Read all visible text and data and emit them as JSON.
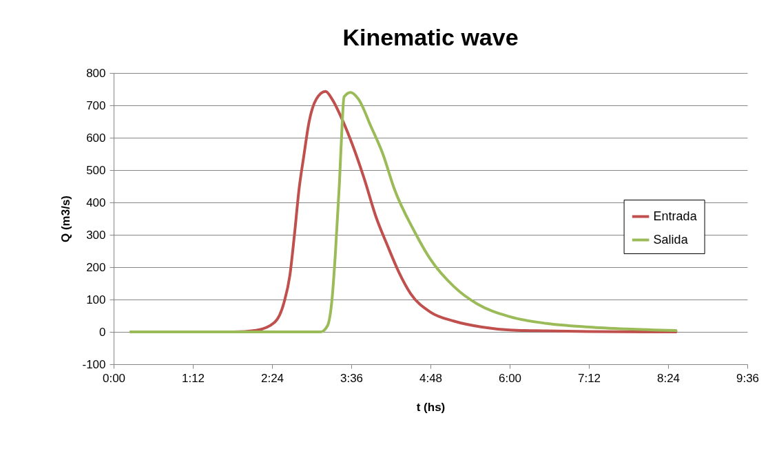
{
  "chart_data": {
    "type": "line",
    "title": "Kinematic wave",
    "xlabel": "t (hs)",
    "ylabel": "Q (m3/s)",
    "xlim": [
      0,
      9.6
    ],
    "xticks": [
      {
        "value": 0,
        "label": "0:00"
      },
      {
        "value": 1.2,
        "label": "1:12"
      },
      {
        "value": 2.4,
        "label": "2:24"
      },
      {
        "value": 3.6,
        "label": "3:36"
      },
      {
        "value": 4.8,
        "label": "4:48"
      },
      {
        "value": 6.0,
        "label": "6:00"
      },
      {
        "value": 7.2,
        "label": "7:12"
      },
      {
        "value": 8.4,
        "label": "8:24"
      },
      {
        "value": 9.6,
        "label": "9:36"
      }
    ],
    "ylim": [
      -100,
      800
    ],
    "yticks": [
      -100,
      0,
      100,
      200,
      300,
      400,
      500,
      600,
      700,
      800
    ],
    "grid": "y",
    "legend": "right",
    "marker": "none",
    "line_style": "solid",
    "series": [
      {
        "name": "Entrada",
        "color": "#c0504d",
        "x": [
          0.26,
          1.82,
          2.16,
          2.44,
          2.58,
          2.67,
          2.74,
          2.81,
          2.88,
          2.96,
          3.07,
          3.21,
          3.31,
          3.45,
          3.62,
          3.8,
          3.97,
          4.15,
          4.32,
          4.5,
          4.8,
          5.16,
          5.58,
          6.0,
          6.56,
          7.2,
          8.52
        ],
        "values": [
          0,
          0,
          5,
          30,
          90,
          175,
          302,
          443,
          542,
          648,
          719,
          743,
          719,
          662,
          577,
          471,
          358,
          266,
          185,
          118,
          61,
          33,
          15,
          6,
          3,
          1,
          0
        ]
      },
      {
        "name": "Salida",
        "color": "#9bbb59",
        "x": [
          0.26,
          3.14,
          3.24,
          3.31,
          3.36,
          3.42,
          3.46,
          3.49,
          3.59,
          3.71,
          3.9,
          4.08,
          4.25,
          4.56,
          4.8,
          5.16,
          5.51,
          6.0,
          6.56,
          7.2,
          7.78,
          8.52
        ],
        "values": [
          0,
          0,
          19,
          104,
          245,
          457,
          634,
          726,
          740,
          719,
          634,
          549,
          443,
          309,
          224,
          139,
          86,
          47,
          26,
          15,
          9,
          4
        ]
      }
    ]
  }
}
